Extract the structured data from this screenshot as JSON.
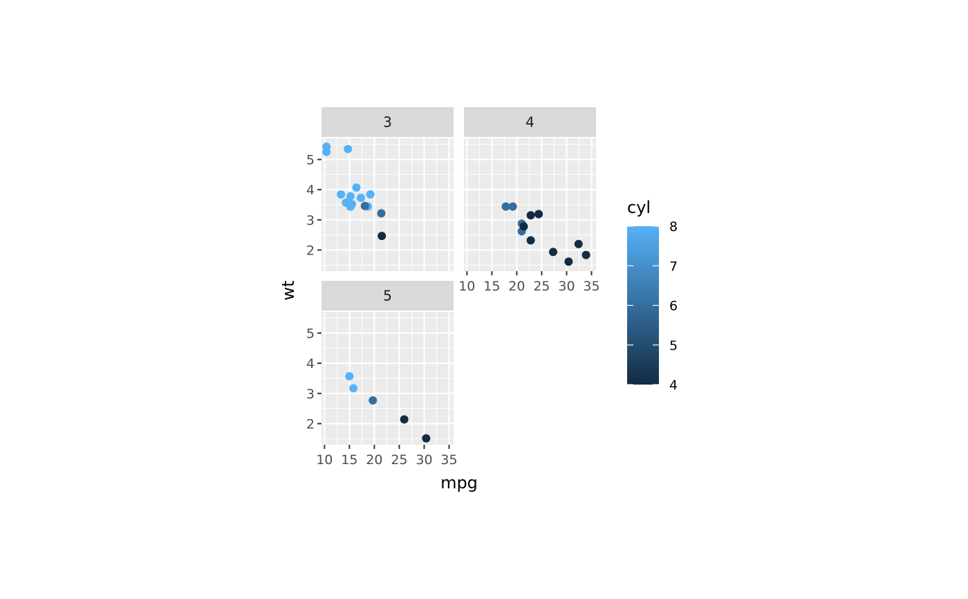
{
  "chart_data": {
    "type": "scatter",
    "facet_variable": "gear",
    "xlabel": "mpg",
    "ylabel": "wt",
    "xlim": [
      9.4,
      35.9
    ],
    "ylim": [
      1.3,
      5.7
    ],
    "x_ticks": [
      10,
      15,
      20,
      25,
      30,
      35
    ],
    "y_ticks": [
      2,
      3,
      4,
      5
    ],
    "grid": true,
    "color_scale": {
      "variable": "cyl",
      "title": "cyl",
      "min": 4,
      "max": 8,
      "breaks": [
        4,
        5,
        6,
        7,
        8
      ],
      "low_color": "#132B43",
      "high_color": "#56B1F7"
    },
    "legend_position": "right",
    "panels": [
      {
        "label": "3",
        "points": [
          {
            "x": 21.4,
            "y": 3.215,
            "cyl": 6
          },
          {
            "x": 18.7,
            "y": 3.44,
            "cyl": 8
          },
          {
            "x": 18.1,
            "y": 3.46,
            "cyl": 6
          },
          {
            "x": 14.3,
            "y": 3.57,
            "cyl": 8
          },
          {
            "x": 16.4,
            "y": 4.07,
            "cyl": 8
          },
          {
            "x": 17.3,
            "y": 3.73,
            "cyl": 8
          },
          {
            "x": 15.2,
            "y": 3.78,
            "cyl": 8
          },
          {
            "x": 10.4,
            "y": 5.25,
            "cyl": 8
          },
          {
            "x": 10.4,
            "y": 5.424,
            "cyl": 8
          },
          {
            "x": 14.7,
            "y": 5.345,
            "cyl": 8
          },
          {
            "x": 21.5,
            "y": 2.465,
            "cyl": 4
          },
          {
            "x": 15.5,
            "y": 3.52,
            "cyl": 8
          },
          {
            "x": 15.2,
            "y": 3.435,
            "cyl": 8
          },
          {
            "x": 13.3,
            "y": 3.84,
            "cyl": 8
          },
          {
            "x": 19.2,
            "y": 3.845,
            "cyl": 8
          }
        ]
      },
      {
        "label": "4",
        "points": [
          {
            "x": 21.0,
            "y": 2.62,
            "cyl": 6
          },
          {
            "x": 21.0,
            "y": 2.875,
            "cyl": 6
          },
          {
            "x": 22.8,
            "y": 2.32,
            "cyl": 4
          },
          {
            "x": 24.4,
            "y": 3.19,
            "cyl": 4
          },
          {
            "x": 22.8,
            "y": 3.15,
            "cyl": 4
          },
          {
            "x": 19.2,
            "y": 3.44,
            "cyl": 6
          },
          {
            "x": 17.8,
            "y": 3.44,
            "cyl": 6
          },
          {
            "x": 32.4,
            "y": 2.2,
            "cyl": 4
          },
          {
            "x": 30.4,
            "y": 1.615,
            "cyl": 4
          },
          {
            "x": 33.9,
            "y": 1.835,
            "cyl": 4
          },
          {
            "x": 27.3,
            "y": 1.935,
            "cyl": 4
          },
          {
            "x": 21.4,
            "y": 2.78,
            "cyl": 4
          }
        ]
      },
      {
        "label": "5",
        "points": [
          {
            "x": 26.0,
            "y": 2.14,
            "cyl": 4
          },
          {
            "x": 30.4,
            "y": 1.513,
            "cyl": 4
          },
          {
            "x": 15.8,
            "y": 3.17,
            "cyl": 8
          },
          {
            "x": 19.7,
            "y": 2.77,
            "cyl": 6
          },
          {
            "x": 15.0,
            "y": 3.57,
            "cyl": 8
          }
        ]
      }
    ]
  }
}
